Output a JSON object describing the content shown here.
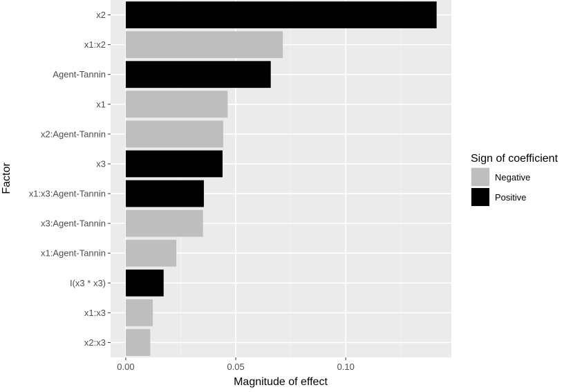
{
  "chart_data": {
    "type": "bar",
    "orientation": "horizontal",
    "xlabel": "Magnitude of effect",
    "ylabel": "Factor",
    "xlim": [
      -0.0069,
      0.148
    ],
    "x_ticks": [
      {
        "value": 0.0,
        "label": "0.00"
      },
      {
        "value": 0.05,
        "label": "0.05"
      },
      {
        "value": 0.1,
        "label": "0.10"
      }
    ],
    "grid": true,
    "legend": {
      "title": "Sign of coefficient",
      "placement": "right",
      "entries": [
        {
          "label": "Negative",
          "color": "#bebebe"
        },
        {
          "label": "Positive",
          "color": "#000000"
        }
      ]
    },
    "categories": [
      "x2",
      "x1:x2",
      "Agent-Tannin",
      "x1",
      "x2:Agent-Tannin",
      "x3",
      "x1:x3:Agent-Tannin",
      "x3:Agent-Tannin",
      "x1:Agent-Tannin",
      "I(x3 * x3)",
      "x1:x3",
      "x2:x3"
    ],
    "values": [
      0.1413,
      0.0714,
      0.0659,
      0.0463,
      0.0443,
      0.044,
      0.0355,
      0.0351,
      0.023,
      0.0172,
      0.0123,
      0.0111
    ],
    "signs": [
      "Positive",
      "Negative",
      "Positive",
      "Negative",
      "Negative",
      "Positive",
      "Positive",
      "Negative",
      "Negative",
      "Positive",
      "Negative",
      "Negative"
    ]
  },
  "colors": {
    "panel_background": "#ebebeb",
    "grid_major": "#ffffff",
    "grid_minor": "#f4f4f4"
  }
}
